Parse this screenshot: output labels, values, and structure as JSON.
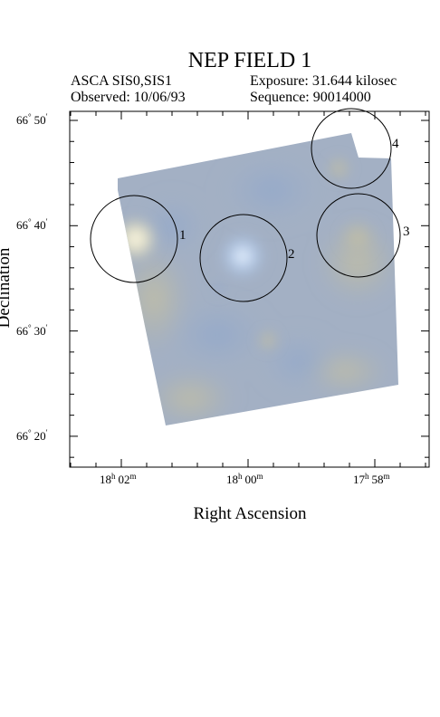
{
  "figure": {
    "title": "NEP FIELD 1",
    "instrument": "ASCA SIS0,SIS1",
    "exposure": "Exposure: 31.644 kilosec",
    "observed": "Observed: 10/06/93",
    "sequence": "Sequence: 90014000",
    "xlabel": "Right Ascension",
    "ylabel": "Declination"
  },
  "axes": {
    "y_ticks": [
      {
        "deg": "66",
        "min": "50",
        "value": "66° 50′"
      },
      {
        "deg": "66",
        "min": "40",
        "value": "66° 40′"
      },
      {
        "deg": "66",
        "min": "30",
        "value": "66° 30′"
      },
      {
        "deg": "66",
        "min": "20",
        "value": "66° 20′"
      }
    ],
    "x_ticks": [
      {
        "h": "18",
        "m": "02",
        "value": "18h 02m"
      },
      {
        "h": "18",
        "m": "00",
        "value": "18h 00m"
      },
      {
        "h": "17",
        "m": "58",
        "value": "17h 58m"
      }
    ]
  },
  "regions": [
    {
      "label": "1"
    },
    {
      "label": "2"
    },
    {
      "label": "3"
    },
    {
      "label": "4"
    }
  ],
  "colors": {
    "image_base": "#9fb0c8",
    "bright_source": "#f4f0d8",
    "source_2": "#e8f2ff"
  }
}
